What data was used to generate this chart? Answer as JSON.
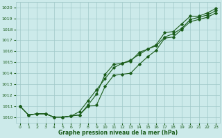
{
  "hours": [
    0,
    1,
    2,
    3,
    4,
    5,
    6,
    7,
    8,
    9,
    10,
    11,
    12,
    13,
    14,
    15,
    16,
    17,
    18,
    19,
    20,
    21,
    22,
    23
  ],
  "line1": [
    1011.0,
    1010.2,
    1010.3,
    1010.3,
    1010.0,
    1010.0,
    1010.1,
    1010.2,
    1011.1,
    1012.1,
    1013.9,
    1014.8,
    1014.9,
    1015.1,
    1015.9,
    1016.2,
    1016.6,
    1017.7,
    1017.8,
    1018.5,
    1019.2,
    1019.2,
    1019.5,
    1019.9
  ],
  "line2": [
    1011.0,
    1010.2,
    1010.3,
    1010.3,
    1010.0,
    1010.0,
    1010.1,
    1010.5,
    1011.5,
    1012.5,
    1013.5,
    1014.5,
    1014.9,
    1015.2,
    1015.7,
    1016.2,
    1016.5,
    1017.3,
    1017.6,
    1018.1,
    1018.9,
    1019.1,
    1019.3,
    1019.7
  ],
  "line3": [
    1011.0,
    1010.2,
    1010.3,
    1010.3,
    1010.0,
    1010.0,
    1010.1,
    1010.2,
    1011.0,
    1011.1,
    1012.8,
    1013.8,
    1013.9,
    1014.0,
    1014.8,
    1015.5,
    1016.1,
    1017.2,
    1017.3,
    1018.0,
    1018.7,
    1018.9,
    1019.1,
    1019.5
  ],
  "line_color": "#1a5c1a",
  "bg_color": "#cceaea",
  "grid_color": "#a0c8c8",
  "xlabel": "Graphe pression niveau de la mer (hPa)",
  "xlabel_color": "#1a5c1a",
  "yticks": [
    1010,
    1011,
    1012,
    1013,
    1014,
    1015,
    1016,
    1017,
    1018,
    1019,
    1020
  ],
  "ylim": [
    1009.5,
    1020.5
  ],
  "xlim": [
    -0.5,
    23.5
  ],
  "xticks": [
    0,
    1,
    2,
    3,
    4,
    5,
    6,
    7,
    8,
    9,
    10,
    11,
    12,
    13,
    14,
    15,
    16,
    17,
    18,
    19,
    20,
    21,
    22,
    23
  ]
}
